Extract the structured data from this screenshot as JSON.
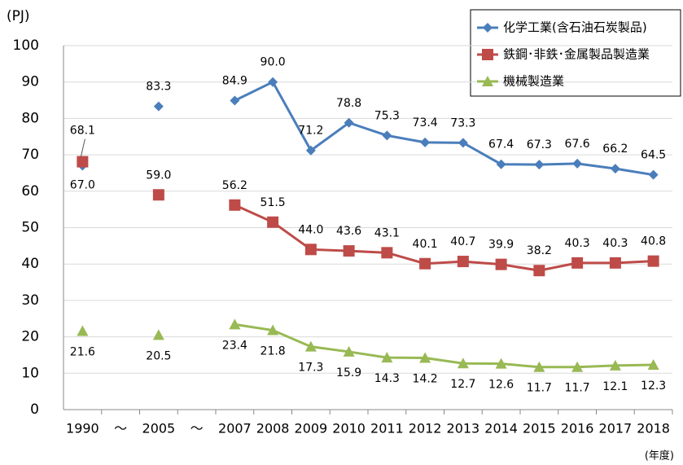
{
  "chart_data": {
    "type": "line",
    "y_label": "(PJ)",
    "x_label": "(年度)",
    "categories": [
      "1990",
      "～",
      "2005",
      "～",
      "2007",
      "2008",
      "2009",
      "2010",
      "2011",
      "2012",
      "2013",
      "2014",
      "2015",
      "2016",
      "2017",
      "2018"
    ],
    "series": [
      {
        "name": "化学工業(含石油石炭製品)",
        "color": "#4a7ebb",
        "marker": "diamond",
        "values": [
          67.0,
          null,
          83.3,
          null,
          84.9,
          90.0,
          71.2,
          78.8,
          75.3,
          73.4,
          73.3,
          67.4,
          67.3,
          67.6,
          66.2,
          64.5
        ],
        "value_labels": [
          "67.0",
          null,
          "83.3",
          null,
          "84.9",
          "90.0",
          "71.2",
          "78.8",
          "75.3",
          "73.4",
          "73.3",
          "67.4",
          "67.3",
          "67.6",
          "66.2",
          "64.5"
        ]
      },
      {
        "name": "鉄鋼･非鉄･金属製品製造業",
        "color": "#be4b48",
        "marker": "square",
        "values": [
          68.1,
          null,
          59.0,
          null,
          56.2,
          51.5,
          44.0,
          43.6,
          43.1,
          40.1,
          40.7,
          39.9,
          38.2,
          40.3,
          40.3,
          40.8
        ],
        "value_labels": [
          "68.1",
          null,
          "59.0",
          null,
          "56.2",
          "51.5",
          "44.0",
          "43.6",
          "43.1",
          "40.1",
          "40.7",
          "39.9",
          "38.2",
          "40.3",
          "40.3",
          "40.8"
        ]
      },
      {
        "name": "機械製造業",
        "color": "#98b954",
        "marker": "triangle",
        "values": [
          21.6,
          null,
          20.5,
          null,
          23.4,
          21.8,
          17.3,
          15.9,
          14.3,
          14.2,
          12.7,
          12.6,
          11.7,
          11.7,
          12.1,
          12.3
        ],
        "value_labels": [
          "21.6",
          null,
          "20.5",
          null,
          "23.4",
          "21.8",
          "17.3",
          "15.9",
          "14.3",
          "14.2",
          "12.7",
          "12.6",
          "11.7",
          "11.7",
          "12.1",
          "12.3"
        ]
      }
    ],
    "ylim": [
      0,
      100
    ],
    "yticks": [
      0,
      10,
      20,
      30,
      40,
      50,
      60,
      70,
      80,
      90,
      100
    ],
    "grid": true,
    "legend": "top-right"
  }
}
